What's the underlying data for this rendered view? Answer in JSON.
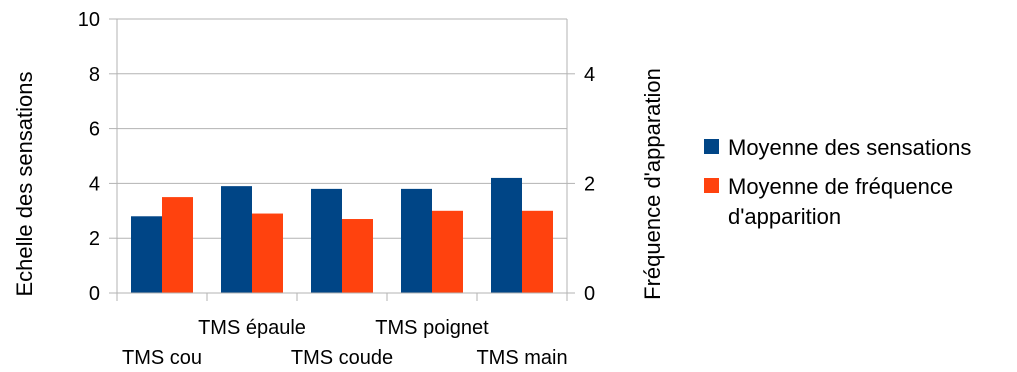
{
  "chart_data": {
    "type": "bar",
    "categories": [
      "TMS cou",
      "TMS épaule",
      "TMS coude",
      "TMS poignet",
      "TMS main"
    ],
    "series": [
      {
        "name": "Moyenne des sensations",
        "axis": "left",
        "color": "#004586",
        "values": [
          2.8,
          3.9,
          3.8,
          3.8,
          4.2
        ]
      },
      {
        "name_lines": [
          "Moyenne de fréquence",
          "d'apparition"
        ],
        "axis": "right",
        "color": "#ff420e",
        "values": [
          1.75,
          1.45,
          1.35,
          1.5,
          1.5
        ]
      }
    ],
    "ylabel": "Echelle des sensations",
    "y2label": "Fréquence d'apparation",
    "ylim": [
      0,
      10
    ],
    "yticks": [
      "0",
      "2",
      "4",
      "6",
      "8",
      "10"
    ],
    "y2lim": [
      0,
      5
    ],
    "y2ticks": [
      "0",
      "2",
      "4"
    ],
    "grid": true,
    "legend": "right"
  }
}
